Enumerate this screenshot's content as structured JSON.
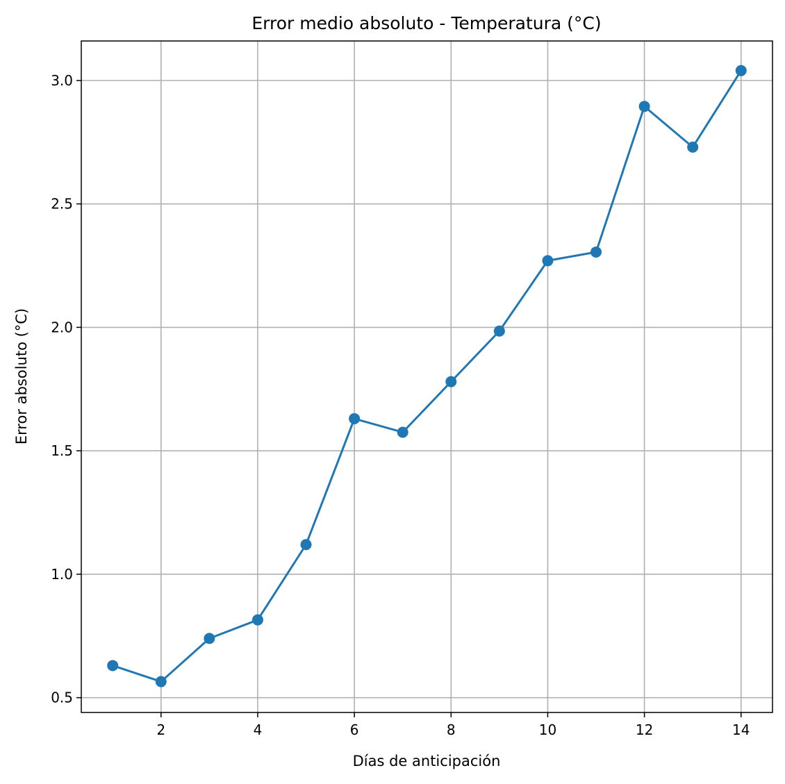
{
  "chart_data": {
    "type": "line",
    "title": "Error medio absoluto - Temperatura (°C)",
    "xlabel": "Días de anticipación",
    "ylabel": "Error absoluto (°C)",
    "x": [
      1,
      2,
      3,
      4,
      5,
      6,
      7,
      8,
      9,
      10,
      11,
      12,
      13,
      14
    ],
    "series": [
      {
        "values": [
          0.63,
          0.565,
          0.74,
          0.815,
          1.12,
          1.63,
          1.575,
          1.78,
          1.985,
          2.27,
          2.305,
          2.895,
          2.73,
          3.04
        ]
      }
    ],
    "xlim": [
      0.35,
      14.65
    ],
    "ylim": [
      0.44,
      3.16
    ],
    "x_ticks": [
      2,
      4,
      6,
      8,
      10,
      12,
      14
    ],
    "x_tick_labels": [
      "2",
      "4",
      "6",
      "8",
      "10",
      "12",
      "14"
    ],
    "y_ticks": [
      0.5,
      1.0,
      1.5,
      2.0,
      2.5,
      3.0
    ],
    "y_tick_labels": [
      "0.5",
      "1.0",
      "1.5",
      "2.0",
      "2.5",
      "3.0"
    ],
    "grid": true,
    "line_color": "#1f77b4",
    "marker": "circle"
  }
}
